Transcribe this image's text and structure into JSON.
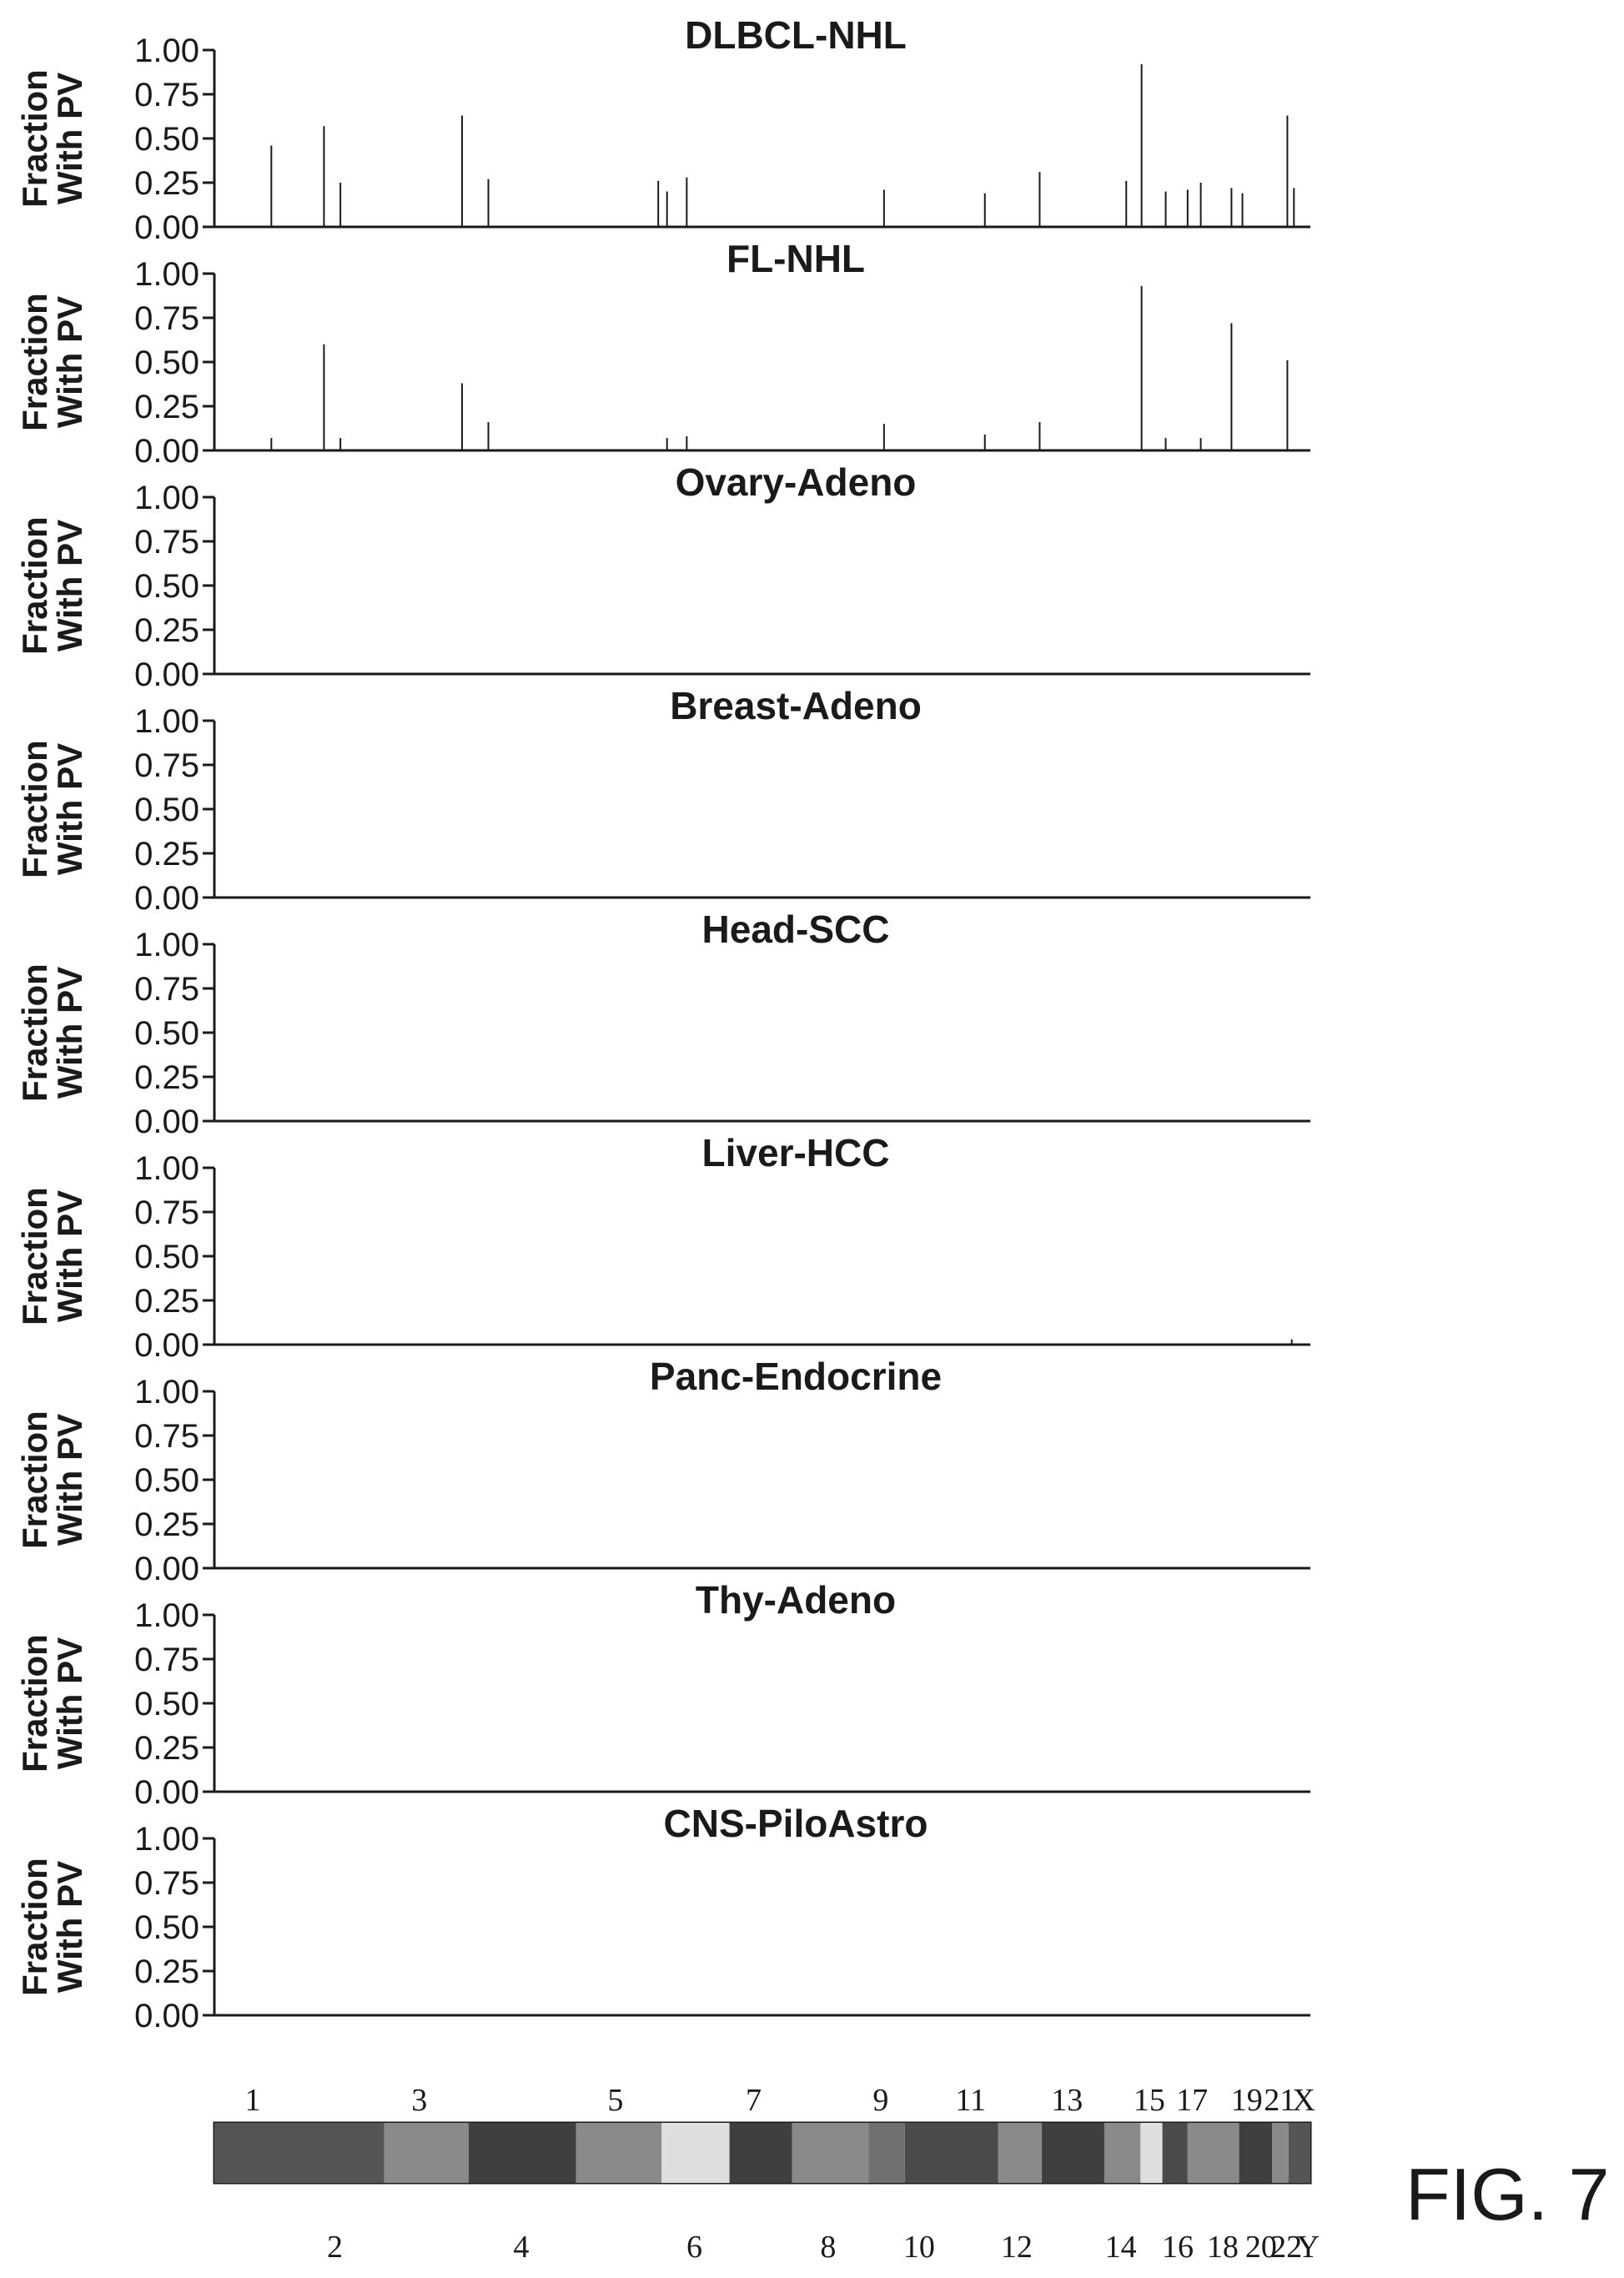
{
  "figure_label": "FIG. 7",
  "colors": {
    "axis": "#1a1a1a",
    "bar": "#1a1a1a"
  },
  "chart_data": {
    "type": "bar",
    "x_domain": [
      0,
      1
    ],
    "chromosomes": {
      "labels_top": [
        "1",
        "3",
        "5",
        "7",
        "9",
        "11",
        "13",
        "15",
        "17",
        "19",
        "21",
        "X"
      ],
      "labels_bottom": [
        "2",
        "4",
        "6",
        "8",
        "10",
        "12",
        "14",
        "16",
        "18",
        "20",
        "22",
        "Y"
      ],
      "bands": [
        {
          "start": 0.0,
          "end": 0.155,
          "shade": "#555555"
        },
        {
          "start": 0.155,
          "end": 0.232,
          "shade": "#8a8a8a"
        },
        {
          "start": 0.232,
          "end": 0.33,
          "shade": "#3f3f3f"
        },
        {
          "start": 0.33,
          "end": 0.408,
          "shade": "#8a8a8a"
        },
        {
          "start": 0.408,
          "end": 0.47,
          "shade": "#dedede"
        },
        {
          "start": 0.47,
          "end": 0.527,
          "shade": "#3f3f3f"
        },
        {
          "start": 0.527,
          "end": 0.597,
          "shade": "#8a8a8a"
        },
        {
          "start": 0.597,
          "end": 0.63,
          "shade": "#707070"
        },
        {
          "start": 0.63,
          "end": 0.715,
          "shade": "#4a4a4a"
        },
        {
          "start": 0.715,
          "end": 0.755,
          "shade": "#8a8a8a"
        },
        {
          "start": 0.755,
          "end": 0.812,
          "shade": "#3f3f3f"
        },
        {
          "start": 0.812,
          "end": 0.845,
          "shade": "#8a8a8a"
        },
        {
          "start": 0.845,
          "end": 0.865,
          "shade": "#dedede"
        },
        {
          "start": 0.865,
          "end": 0.888,
          "shade": "#4a4a4a"
        },
        {
          "start": 0.888,
          "end": 0.935,
          "shade": "#8a8a8a"
        },
        {
          "start": 0.935,
          "end": 0.965,
          "shade": "#3f3f3f"
        },
        {
          "start": 0.965,
          "end": 0.98,
          "shade": "#8a8a8a"
        },
        {
          "start": 0.98,
          "end": 1.0,
          "shade": "#555555"
        }
      ]
    },
    "panels": [
      {
        "title": "DLBCL-NHL",
        "ylabel": [
          "Fraction",
          "With PV"
        ],
        "yticks": [
          "0.00",
          "0.25",
          "0.50",
          "0.75",
          "1.00"
        ],
        "ylim": [
          0,
          1
        ],
        "bars": [
          {
            "x": 0.052,
            "y": 0.46
          },
          {
            "x": 0.1,
            "y": 0.57
          },
          {
            "x": 0.115,
            "y": 0.25
          },
          {
            "x": 0.226,
            "y": 0.63
          },
          {
            "x": 0.25,
            "y": 0.27
          },
          {
            "x": 0.405,
            "y": 0.26
          },
          {
            "x": 0.413,
            "y": 0.2
          },
          {
            "x": 0.431,
            "y": 0.28
          },
          {
            "x": 0.611,
            "y": 0.21
          },
          {
            "x": 0.703,
            "y": 0.19
          },
          {
            "x": 0.753,
            "y": 0.31
          },
          {
            "x": 0.832,
            "y": 0.26
          },
          {
            "x": 0.846,
            "y": 0.92
          },
          {
            "x": 0.868,
            "y": 0.2
          },
          {
            "x": 0.888,
            "y": 0.21
          },
          {
            "x": 0.9,
            "y": 0.25
          },
          {
            "x": 0.928,
            "y": 0.22
          },
          {
            "x": 0.938,
            "y": 0.19
          },
          {
            "x": 0.979,
            "y": 0.63
          },
          {
            "x": 0.985,
            "y": 0.22
          }
        ]
      },
      {
        "title": "FL-NHL",
        "ylabel": [
          "Fraction",
          "With PV"
        ],
        "yticks": [
          "0.00",
          "0.25",
          "0.50",
          "0.75",
          "1.00"
        ],
        "ylim": [
          0,
          1
        ],
        "bars": [
          {
            "x": 0.052,
            "y": 0.07
          },
          {
            "x": 0.1,
            "y": 0.6
          },
          {
            "x": 0.115,
            "y": 0.07
          },
          {
            "x": 0.226,
            "y": 0.38
          },
          {
            "x": 0.25,
            "y": 0.16
          },
          {
            "x": 0.413,
            "y": 0.07
          },
          {
            "x": 0.431,
            "y": 0.08
          },
          {
            "x": 0.611,
            "y": 0.15
          },
          {
            "x": 0.703,
            "y": 0.09
          },
          {
            "x": 0.753,
            "y": 0.16
          },
          {
            "x": 0.846,
            "y": 0.93
          },
          {
            "x": 0.868,
            "y": 0.07
          },
          {
            "x": 0.9,
            "y": 0.07
          },
          {
            "x": 0.928,
            "y": 0.72
          },
          {
            "x": 0.979,
            "y": 0.51
          }
        ]
      },
      {
        "title": "Ovary-Adeno",
        "ylabel": [
          "Fraction",
          "With PV"
        ],
        "yticks": [
          "0.00",
          "0.25",
          "0.50",
          "0.75",
          "1.00"
        ],
        "ylim": [
          0,
          1
        ],
        "bars": []
      },
      {
        "title": "Breast-Adeno",
        "ylabel": [
          "Fraction",
          "With PV"
        ],
        "yticks": [
          "0.00",
          "0.25",
          "0.50",
          "0.75",
          "1.00"
        ],
        "ylim": [
          0,
          1
        ],
        "bars": []
      },
      {
        "title": "Head-SCC",
        "ylabel": [
          "Fraction",
          "With PV"
        ],
        "yticks": [
          "0.00",
          "0.25",
          "0.50",
          "0.75",
          "1.00"
        ],
        "ylim": [
          0,
          1
        ],
        "bars": []
      },
      {
        "title": "Liver-HCC",
        "ylabel": [
          "Fraction",
          "With PV"
        ],
        "yticks": [
          "0.00",
          "0.25",
          "0.50",
          "0.75",
          "1.00"
        ],
        "ylim": [
          0,
          1
        ],
        "bars": [
          {
            "x": 0.983,
            "y": 0.03
          }
        ]
      },
      {
        "title": "Panc-Endocrine",
        "ylabel": [
          "Fraction",
          "With PV"
        ],
        "yticks": [
          "0.00",
          "0.25",
          "0.50",
          "0.75",
          "1.00"
        ],
        "ylim": [
          0,
          1
        ],
        "bars": []
      },
      {
        "title": "Thy-Adeno",
        "ylabel": [
          "Fraction",
          "With PV"
        ],
        "yticks": [
          "0.00",
          "0.25",
          "0.50",
          "0.75",
          "1.00"
        ],
        "ylim": [
          0,
          1
        ],
        "bars": []
      },
      {
        "title": "CNS-PiloAstro",
        "ylabel": [
          "Fraction",
          "With PV"
        ],
        "yticks": [
          "0.00",
          "0.25",
          "0.50",
          "0.75",
          "1.00"
        ],
        "ylim": [
          0,
          1
        ],
        "bars": []
      }
    ]
  }
}
